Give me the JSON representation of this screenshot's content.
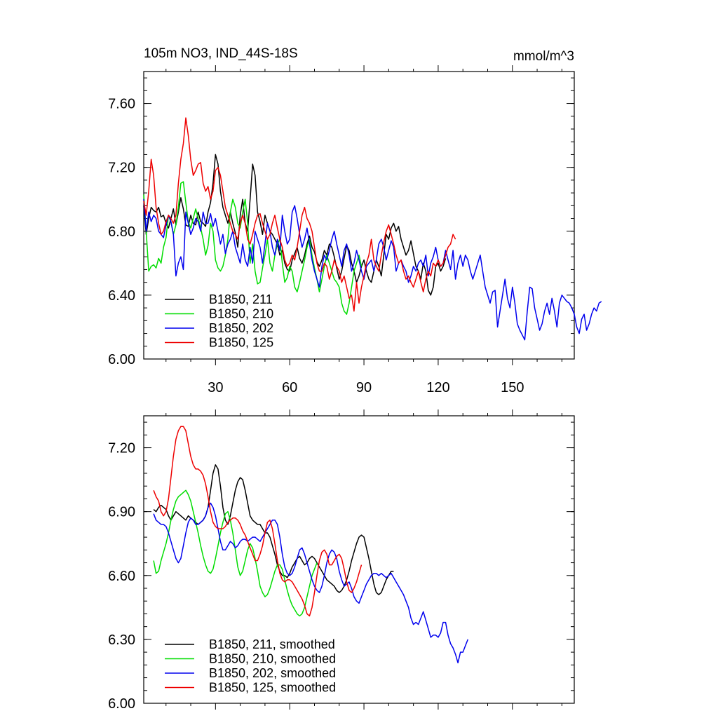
{
  "chart_data": [
    {
      "type": "line",
      "title": "105m NO3, IND_44S-18S",
      "units_label": "mmol/m^3",
      "xlabel": "",
      "ylabel": "",
      "xlim": [
        1,
        175
      ],
      "ylim": [
        6.0,
        7.8
      ],
      "yticks": [
        6.0,
        6.4,
        6.8,
        7.2,
        7.6
      ],
      "ytick_labels": [
        "6.00",
        "6.40",
        "6.80",
        "7.20",
        "7.60"
      ],
      "xticks": [
        30,
        60,
        90,
        120,
        150
      ],
      "xtick_labels": [
        "30",
        "60",
        "90",
        "120",
        "150"
      ],
      "legend_position": "bottom-left",
      "series": [
        {
          "name": "B1850, 211",
          "color": "#000000",
          "x_start": 1,
          "values": [
            6.96,
            6.78,
            6.88,
            6.95,
            6.93,
            6.92,
            6.95,
            6.89,
            6.9,
            6.85,
            6.82,
            6.88,
            6.94,
            6.84,
            6.92,
            7.01,
            6.94,
            6.84,
            6.83,
            6.9,
            6.85,
            6.84,
            6.92,
            6.86,
            6.85,
            6.83,
            6.92,
            6.98,
            7.1,
            7.28,
            7.22,
            7.05,
            6.95,
            6.9,
            6.85,
            6.92,
            6.85,
            6.79,
            6.7,
            6.9,
            7.0,
            6.85,
            6.8,
            7.0,
            7.22,
            7.15,
            6.92,
            6.86,
            6.78,
            6.9,
            6.85,
            6.8,
            6.78,
            6.75,
            6.72,
            6.65,
            6.68,
            6.6,
            6.56,
            6.55,
            6.62,
            6.66,
            6.7,
            6.63,
            6.6,
            6.65,
            6.72,
            6.77,
            6.7,
            6.67,
            6.61,
            6.58,
            6.62,
            6.68,
            6.65,
            6.72,
            6.7,
            6.64,
            6.57,
            6.5,
            6.55,
            6.63,
            6.71,
            6.68,
            6.6,
            6.55,
            6.48,
            6.52,
            6.58,
            6.62,
            6.55,
            6.5,
            6.48,
            6.55,
            6.62,
            6.58,
            6.52,
            6.65,
            6.78,
            6.75,
            6.82,
            6.85,
            6.8,
            6.83,
            6.75,
            6.7,
            6.65,
            6.68,
            6.74,
            6.66,
            6.58,
            6.55,
            6.5,
            6.6,
            6.55,
            6.43,
            6.4,
            6.45,
            6.58,
            6.6,
            6.55,
            6.58,
            6.63
          ]
        },
        {
          "name": "B1850, 210",
          "color": "#00dd00",
          "x_start": 1,
          "values": [
            7.03,
            6.8,
            6.55,
            6.58,
            6.59,
            6.57,
            6.63,
            6.6,
            6.7,
            6.76,
            6.9,
            6.86,
            6.78,
            6.84,
            6.95,
            7.1,
            7.11,
            6.98,
            6.86,
            6.82,
            6.88,
            6.94,
            6.88,
            6.82,
            6.75,
            6.65,
            6.71,
            6.85,
            6.8,
            6.62,
            6.57,
            6.55,
            6.58,
            6.65,
            6.75,
            6.92,
            7.0,
            6.95,
            6.85,
            6.82,
            6.92,
            7.0,
            6.85,
            6.6,
            6.72,
            6.55,
            6.47,
            6.48,
            6.57,
            6.65,
            6.75,
            6.6,
            6.55,
            6.65,
            6.72,
            6.75,
            6.6,
            6.48,
            6.51,
            6.58,
            6.55,
            6.45,
            6.42,
            6.48,
            6.55,
            6.62,
            6.7,
            6.75,
            6.65,
            6.57,
            6.5,
            6.42,
            6.5,
            6.58,
            6.65,
            6.6,
            6.55,
            6.5,
            6.48,
            6.45,
            6.35,
            6.3,
            6.28,
            6.35,
            6.45,
            6.55,
            6.6,
            6.65,
            6.58
          ]
        },
        {
          "name": "B1850, 202",
          "color": "#0000ee",
          "x_start": 1,
          "values": [
            7.0,
            6.8,
            6.92,
            6.86,
            6.9,
            6.88,
            6.8,
            6.78,
            6.76,
            6.84,
            6.9,
            6.86,
            6.78,
            6.52,
            6.6,
            6.64,
            6.56,
            6.92,
            6.85,
            6.78,
            6.82,
            6.88,
            6.86,
            6.8,
            6.92,
            6.85,
            6.85,
            6.91,
            6.83,
            6.88,
            6.8,
            6.72,
            6.78,
            6.66,
            6.72,
            6.75,
            6.8,
            6.7,
            6.65,
            6.6,
            6.72,
            6.62,
            6.58,
            6.7,
            6.6,
            6.8,
            6.75,
            6.7,
            6.6,
            6.72,
            6.85,
            6.8,
            6.7,
            6.65,
            6.75,
            6.68,
            6.9,
            6.8,
            6.72,
            6.75,
            6.92,
            6.96,
            6.88,
            6.78,
            6.7,
            6.75,
            6.82,
            6.72,
            6.62,
            6.55,
            6.5,
            6.45,
            6.58,
            6.65,
            6.62,
            6.68,
            6.75,
            6.8,
            6.72,
            6.65,
            6.58,
            6.68,
            6.72,
            6.65,
            6.55,
            6.6,
            6.68,
            6.62,
            6.55,
            6.5,
            6.58,
            6.6,
            6.62,
            6.55,
            6.62,
            6.72,
            6.75,
            6.7,
            6.62,
            6.68,
            6.74,
            6.7,
            6.55,
            6.6,
            6.62,
            6.58,
            6.55,
            6.48,
            6.52,
            6.58,
            6.55,
            6.6,
            6.62,
            6.58,
            6.65,
            6.52,
            6.6,
            6.64,
            6.7,
            6.62,
            6.58,
            6.6,
            6.68,
            6.62,
            6.56,
            6.68,
            6.5,
            6.6,
            6.65,
            6.58,
            6.65,
            6.62,
            6.55,
            6.5,
            6.55,
            6.6,
            6.65,
            6.55,
            6.45,
            6.4,
            6.35,
            6.42,
            6.43,
            6.2,
            6.3,
            6.4,
            6.5,
            6.38,
            6.32,
            6.45,
            6.35,
            6.22,
            6.18,
            6.15,
            6.12,
            6.3,
            6.45,
            6.44,
            6.32,
            6.25,
            6.18,
            6.22,
            6.3,
            6.35,
            6.28,
            6.38,
            6.3,
            6.2,
            6.35,
            6.4,
            6.38,
            6.36,
            6.35,
            6.32,
            6.28,
            6.2,
            6.16,
            6.25,
            6.28,
            6.18,
            6.22,
            6.28,
            6.32,
            6.3,
            6.35,
            6.36
          ]
        },
        {
          "name": "B1850, 125",
          "color": "#ee0000",
          "x_start": 1,
          "values": [
            6.99,
            6.9,
            7.05,
            7.25,
            7.15,
            6.95,
            6.85,
            6.78,
            6.8,
            6.86,
            6.9,
            6.88,
            6.85,
            6.9,
            7.1,
            7.25,
            7.35,
            7.51,
            7.4,
            7.25,
            7.15,
            7.18,
            7.22,
            7.23,
            7.1,
            7.05,
            7.08,
            7.0,
            7.05,
            7.18,
            7.2,
            7.15,
            7.05,
            6.95,
            6.9,
            6.85,
            6.8,
            6.78,
            6.75,
            6.85,
            6.9,
            6.85,
            6.75,
            6.72,
            6.78,
            6.85,
            6.9,
            6.91,
            6.85,
            6.8,
            6.75,
            6.78,
            6.85,
            6.9,
            6.82,
            6.75,
            6.7,
            6.62,
            6.58,
            6.6,
            6.65,
            6.62,
            6.7,
            6.8,
            6.9,
            6.95,
            6.88,
            6.85,
            6.8,
            6.7,
            6.6,
            6.55,
            6.55,
            6.6,
            6.58,
            6.5,
            6.55,
            6.62,
            6.58,
            6.55,
            6.48,
            6.52,
            6.45,
            6.38,
            6.4,
            6.3,
            6.48,
            6.35,
            6.45,
            6.52,
            6.6,
            6.65,
            6.75,
            6.62,
            6.58,
            6.55,
            6.65,
            6.73,
            6.8,
            6.84,
            6.78,
            6.72,
            6.65,
            6.6,
            6.62,
            6.55,
            6.5,
            6.52,
            6.48,
            6.45,
            6.5,
            6.55,
            6.48,
            6.42,
            6.5,
            6.55,
            6.52,
            6.6,
            6.58,
            6.62,
            6.58,
            6.6,
            6.65,
            6.7,
            6.72,
            6.78,
            6.75
          ]
        }
      ]
    },
    {
      "type": "line",
      "title": "",
      "xlabel": "",
      "ylabel": "",
      "xlim": [
        1,
        175
      ],
      "ylim": [
        6.0,
        7.35
      ],
      "yticks": [
        6.0,
        6.3,
        6.6,
        6.9,
        7.2
      ],
      "ytick_labels": [
        "6.00",
        "6.30",
        "6.60",
        "6.90",
        "7.20"
      ],
      "xticks": [
        30,
        60,
        90,
        120,
        150
      ],
      "xtick_labels": [
        "",
        "",
        "",
        "",
        ""
      ],
      "legend_position": "bottom-left",
      "series": [
        {
          "name": "B1850, 211, smoothed",
          "color": "#000000",
          "x_start": 5,
          "values": [
            6.91,
            6.9,
            6.92,
            6.93,
            6.92,
            6.91,
            6.88,
            6.86,
            6.88,
            6.9,
            6.89,
            6.88,
            6.87,
            6.86,
            6.88,
            6.87,
            6.86,
            6.85,
            6.84,
            6.85,
            6.86,
            6.88,
            6.92,
            7.0,
            7.08,
            7.12,
            7.1,
            7.02,
            6.92,
            6.86,
            6.84,
            6.88,
            6.94,
            7.0,
            7.04,
            7.06,
            7.05,
            7.0,
            6.94,
            6.88,
            6.86,
            6.85,
            6.84,
            6.84,
            6.82,
            6.8,
            6.8,
            6.78,
            6.74,
            6.7,
            6.65,
            6.62,
            6.6,
            6.6,
            6.59,
            6.61,
            6.64,
            6.66,
            6.68,
            6.69,
            6.67,
            6.65,
            6.66,
            6.68,
            6.69,
            6.68,
            6.66,
            6.64,
            6.62,
            6.6,
            6.58,
            6.57,
            6.56,
            6.55,
            6.53,
            6.52,
            6.53,
            6.55,
            6.58,
            6.62,
            6.67,
            6.71,
            6.75,
            6.78,
            6.79,
            6.78,
            6.73,
            6.68,
            6.62,
            6.56,
            6.52,
            6.51,
            6.52,
            6.55,
            6.58,
            6.6,
            6.62,
            6.62
          ]
        },
        {
          "name": "B1850, 210, smoothed",
          "color": "#00dd00",
          "x_start": 5,
          "values": [
            6.67,
            6.61,
            6.62,
            6.67,
            6.71,
            6.75,
            6.8,
            6.86,
            6.91,
            6.95,
            6.97,
            6.98,
            6.99,
            7.0,
            6.98,
            6.95,
            6.9,
            6.85,
            6.8,
            6.74,
            6.69,
            6.65,
            6.62,
            6.61,
            6.63,
            6.68,
            6.74,
            6.8,
            6.85,
            6.89,
            6.9,
            6.86,
            6.8,
            6.72,
            6.64,
            6.6,
            6.62,
            6.67,
            6.72,
            6.75,
            6.73,
            6.68,
            6.62,
            6.55,
            6.52,
            6.5,
            6.51,
            6.54,
            6.58,
            6.62,
            6.65,
            6.65,
            6.63,
            6.58,
            6.53,
            6.49,
            6.46,
            6.44,
            6.42,
            6.41,
            6.42,
            6.45,
            6.5,
            6.55,
            6.6,
            6.63,
            6.66
          ]
        },
        {
          "name": "B1850, 202, smoothed",
          "color": "#0000ee",
          "x_start": 5,
          "values": [
            6.89,
            6.86,
            6.85,
            6.84,
            6.84,
            6.83,
            6.8,
            6.76,
            6.72,
            6.68,
            6.66,
            6.68,
            6.74,
            6.8,
            6.85,
            6.87,
            6.86,
            6.84,
            6.84,
            6.85,
            6.86,
            6.88,
            6.92,
            6.94,
            6.92,
            6.88,
            6.82,
            6.76,
            6.72,
            6.72,
            6.74,
            6.76,
            6.75,
            6.73,
            6.74,
            6.76,
            6.77,
            6.77,
            6.76,
            6.77,
            6.78,
            6.78,
            6.77,
            6.76,
            6.78,
            6.8,
            6.82,
            6.84,
            6.86,
            6.86,
            6.84,
            6.78,
            6.7,
            6.64,
            6.61,
            6.6,
            6.61,
            6.64,
            6.68,
            6.72,
            6.73,
            6.7,
            6.66,
            6.62,
            6.58,
            6.55,
            6.53,
            6.52,
            6.55,
            6.6,
            6.66,
            6.7,
            6.72,
            6.71,
            6.68,
            6.62,
            6.58,
            6.55,
            6.56,
            6.57,
            6.54,
            6.5,
            6.48,
            6.47,
            6.5,
            6.53,
            6.56,
            6.58,
            6.6,
            6.61,
            6.61,
            6.6,
            6.61,
            6.6,
            6.59,
            6.6,
            6.61,
            6.59,
            6.57,
            6.55,
            6.53,
            6.51,
            6.48,
            6.45,
            6.4,
            6.37,
            6.38,
            6.37,
            6.4,
            6.43,
            6.39,
            6.35,
            6.31,
            6.32,
            6.32,
            6.31,
            6.33,
            6.38,
            6.38,
            6.32,
            6.28,
            6.26,
            6.23,
            6.19,
            6.24,
            6.24,
            6.27,
            6.3
          ]
        },
        {
          "name": "B1850, 125, smoothed",
          "color": "#ee0000",
          "x_start": 5,
          "values": [
            7.0,
            6.97,
            6.95,
            6.9,
            6.88,
            6.9,
            6.96,
            7.06,
            7.16,
            7.24,
            7.28,
            7.3,
            7.3,
            7.28,
            7.22,
            7.16,
            7.12,
            7.1,
            7.1,
            7.09,
            7.07,
            7.03,
            6.97,
            6.9,
            6.85,
            6.83,
            6.82,
            6.82,
            6.82,
            6.83,
            6.85,
            6.86,
            6.87,
            6.87,
            6.86,
            6.84,
            6.81,
            6.79,
            6.76,
            6.73,
            6.7,
            6.67,
            6.67,
            6.7,
            6.74,
            6.8,
            6.85,
            6.86,
            6.82,
            6.75,
            6.67,
            6.61,
            6.58,
            6.57,
            6.58,
            6.58,
            6.57,
            6.55,
            6.53,
            6.51,
            6.49,
            6.46,
            6.42,
            6.41,
            6.45,
            6.52,
            6.6,
            6.67,
            6.71,
            6.72,
            6.7,
            6.65,
            6.65,
            6.67,
            6.69,
            6.7,
            6.68,
            6.63,
            6.57,
            6.53,
            6.52,
            6.54,
            6.57,
            6.61,
            6.65
          ]
        }
      ]
    }
  ]
}
